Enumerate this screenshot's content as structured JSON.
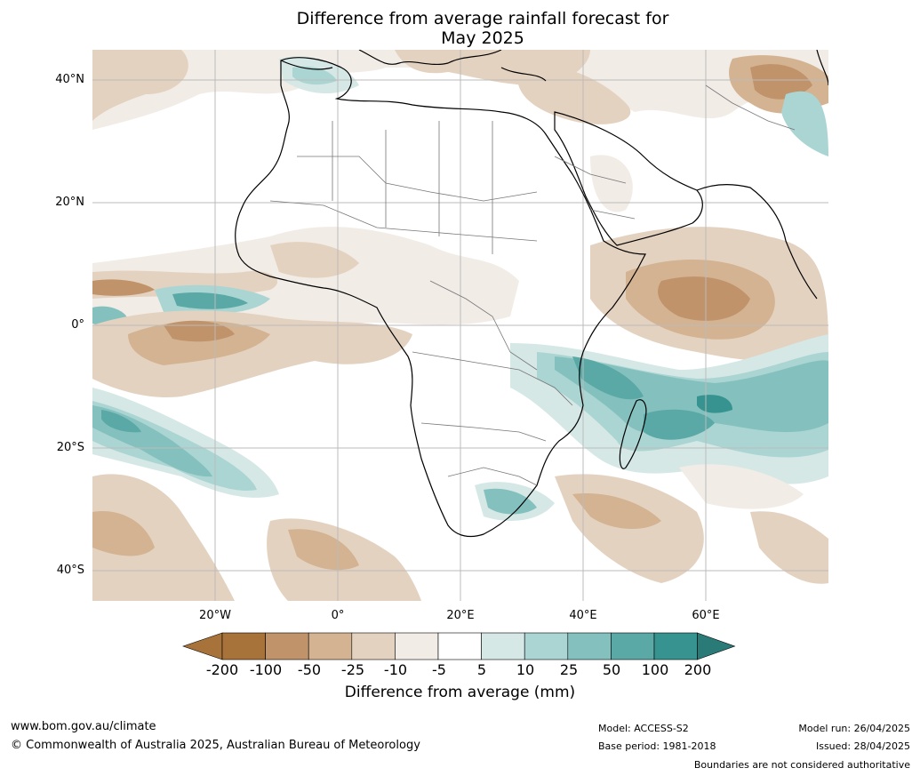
{
  "title": {
    "line1": "Difference from average rainfall forecast for",
    "line2": "May 2025"
  },
  "axes": {
    "lat_ticks": [
      "40°N",
      "20°N",
      "0°",
      "20°S",
      "40°S"
    ],
    "lon_ticks": [
      "20°W",
      "0°",
      "20°E",
      "40°E",
      "60°E"
    ]
  },
  "colorbar": {
    "title": "Difference from average (mm)",
    "tick_labels": [
      "-200",
      "-100",
      "-50",
      "-25",
      "-10",
      "-5",
      "5",
      "10",
      "25",
      "50",
      "100",
      "200"
    ],
    "colors": [
      "#a8733b",
      "#c0936a",
      "#d3b392",
      "#e4d2c0",
      "#f2ece6",
      "#ffffff",
      "#d5e8e6",
      "#abd5d3",
      "#84c1be",
      "#5aa9a6",
      "#36938f",
      "#2a7b78"
    ]
  },
  "footer": {
    "url": "www.bom.gov.au/climate",
    "copyright": "© Commonwealth of Australia 2025, Australian Bureau of Meteorology",
    "model": "Model: ACCESS-S2",
    "base_period": "Base period: 1981-2018",
    "model_run": "Model run: 26/04/2025",
    "issued": "Issued: 28/04/2025",
    "disclaimer": "Boundaries are not considered authoritative"
  }
}
